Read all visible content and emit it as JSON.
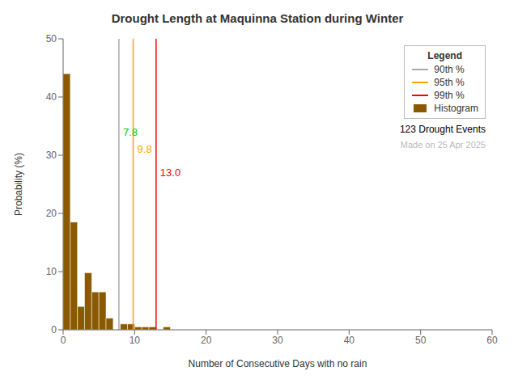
{
  "chart_data": {
    "type": "histogram",
    "title": "Drought Length at Maquinna Station during Winter",
    "x_label": "Number of Consecutive Days with no rain",
    "y_label": "Probability (%)",
    "xlim": [
      0,
      60
    ],
    "ylim": [
      0,
      50
    ],
    "xticks": [
      0,
      10,
      20,
      30,
      40,
      50,
      60
    ],
    "yticks": [
      0,
      10,
      20,
      30,
      40,
      50
    ],
    "bins": [
      0,
      1,
      2,
      3,
      4,
      5,
      6,
      7,
      8,
      9,
      10,
      11,
      12,
      13,
      14,
      15
    ],
    "series": [
      {
        "name": "Histogram",
        "color": "#8B5A00",
        "values": [
          44.0,
          18.5,
          4.0,
          9.8,
          6.5,
          6.5,
          2.0,
          0.0,
          1.0,
          1.0,
          0.5,
          0.5,
          0.5,
          0.0,
          0.5
        ]
      }
    ],
    "vlines": [
      {
        "name": "90th %",
        "value": 7.8,
        "color": "#AAAAAA"
      },
      {
        "name": "95th %",
        "value": 9.8,
        "color": "#FFA500"
      },
      {
        "name": "99th %",
        "value": 13.0,
        "color": "#FF0000"
      }
    ],
    "annotations": [
      {
        "text": "7.8",
        "x": 7.8,
        "y": 34,
        "color": "#00CC00"
      },
      {
        "text": "9.8",
        "x": 9.8,
        "y": 31,
        "color": "#FFA500"
      },
      {
        "text": "13.0",
        "x": 13.0,
        "y": 27,
        "color": "#FF0000"
      }
    ],
    "legend": "upper right",
    "legend_title": "Legend",
    "legend_notes": [
      {
        "text": "123 Drought Events",
        "color": "black"
      },
      {
        "text": "Made on 25 Apr 2025",
        "color": "#BBBBBB"
      }
    ]
  }
}
